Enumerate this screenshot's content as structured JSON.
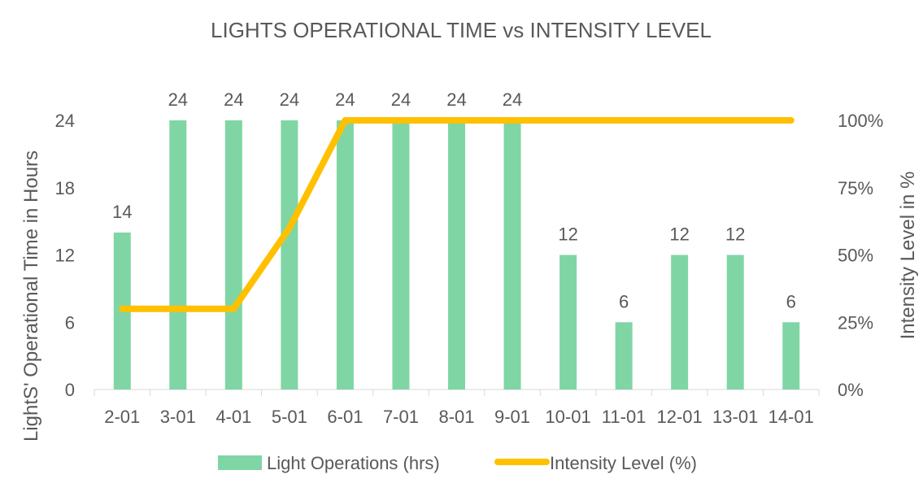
{
  "chart_data": {
    "type": "bar",
    "title": "LIGHTS OPERATIONAL TIME vs INTENSITY LEVEL",
    "categories": [
      "2-01",
      "3-01",
      "4-01",
      "5-01",
      "6-01",
      "7-01",
      "8-01",
      "9-01",
      "10-01",
      "11-01",
      "12-01",
      "13-01",
      "14-01"
    ],
    "ylabel": "LightS' Operational Time in Hours",
    "y2label": "Intensity Level in %",
    "ylim": [
      0,
      24
    ],
    "yticks": [
      "0",
      "6",
      "12",
      "18",
      "24"
    ],
    "y2lim": [
      0,
      100
    ],
    "y2ticks": [
      "0%",
      "25%",
      "50%",
      "75%",
      "100%"
    ],
    "grid": false,
    "legend_position": "bottom",
    "series": [
      {
        "name": "Light Operations (hrs)",
        "type": "bar",
        "axis": "left",
        "color": "#7fd6a4",
        "values": [
          14,
          24,
          24,
          24,
          24,
          24,
          24,
          24,
          12,
          6,
          12,
          12,
          6
        ],
        "labels": [
          "14",
          "24",
          "24",
          "24",
          "24",
          "24",
          "24",
          "24",
          "12",
          "6",
          "12",
          "12",
          "6"
        ]
      },
      {
        "name": "Intensity Level (%)",
        "type": "line",
        "axis": "right",
        "color": "#ffc000",
        "values": [
          30,
          30,
          30,
          60,
          100,
          100,
          100,
          100,
          100,
          100,
          100,
          100,
          100
        ]
      }
    ]
  }
}
